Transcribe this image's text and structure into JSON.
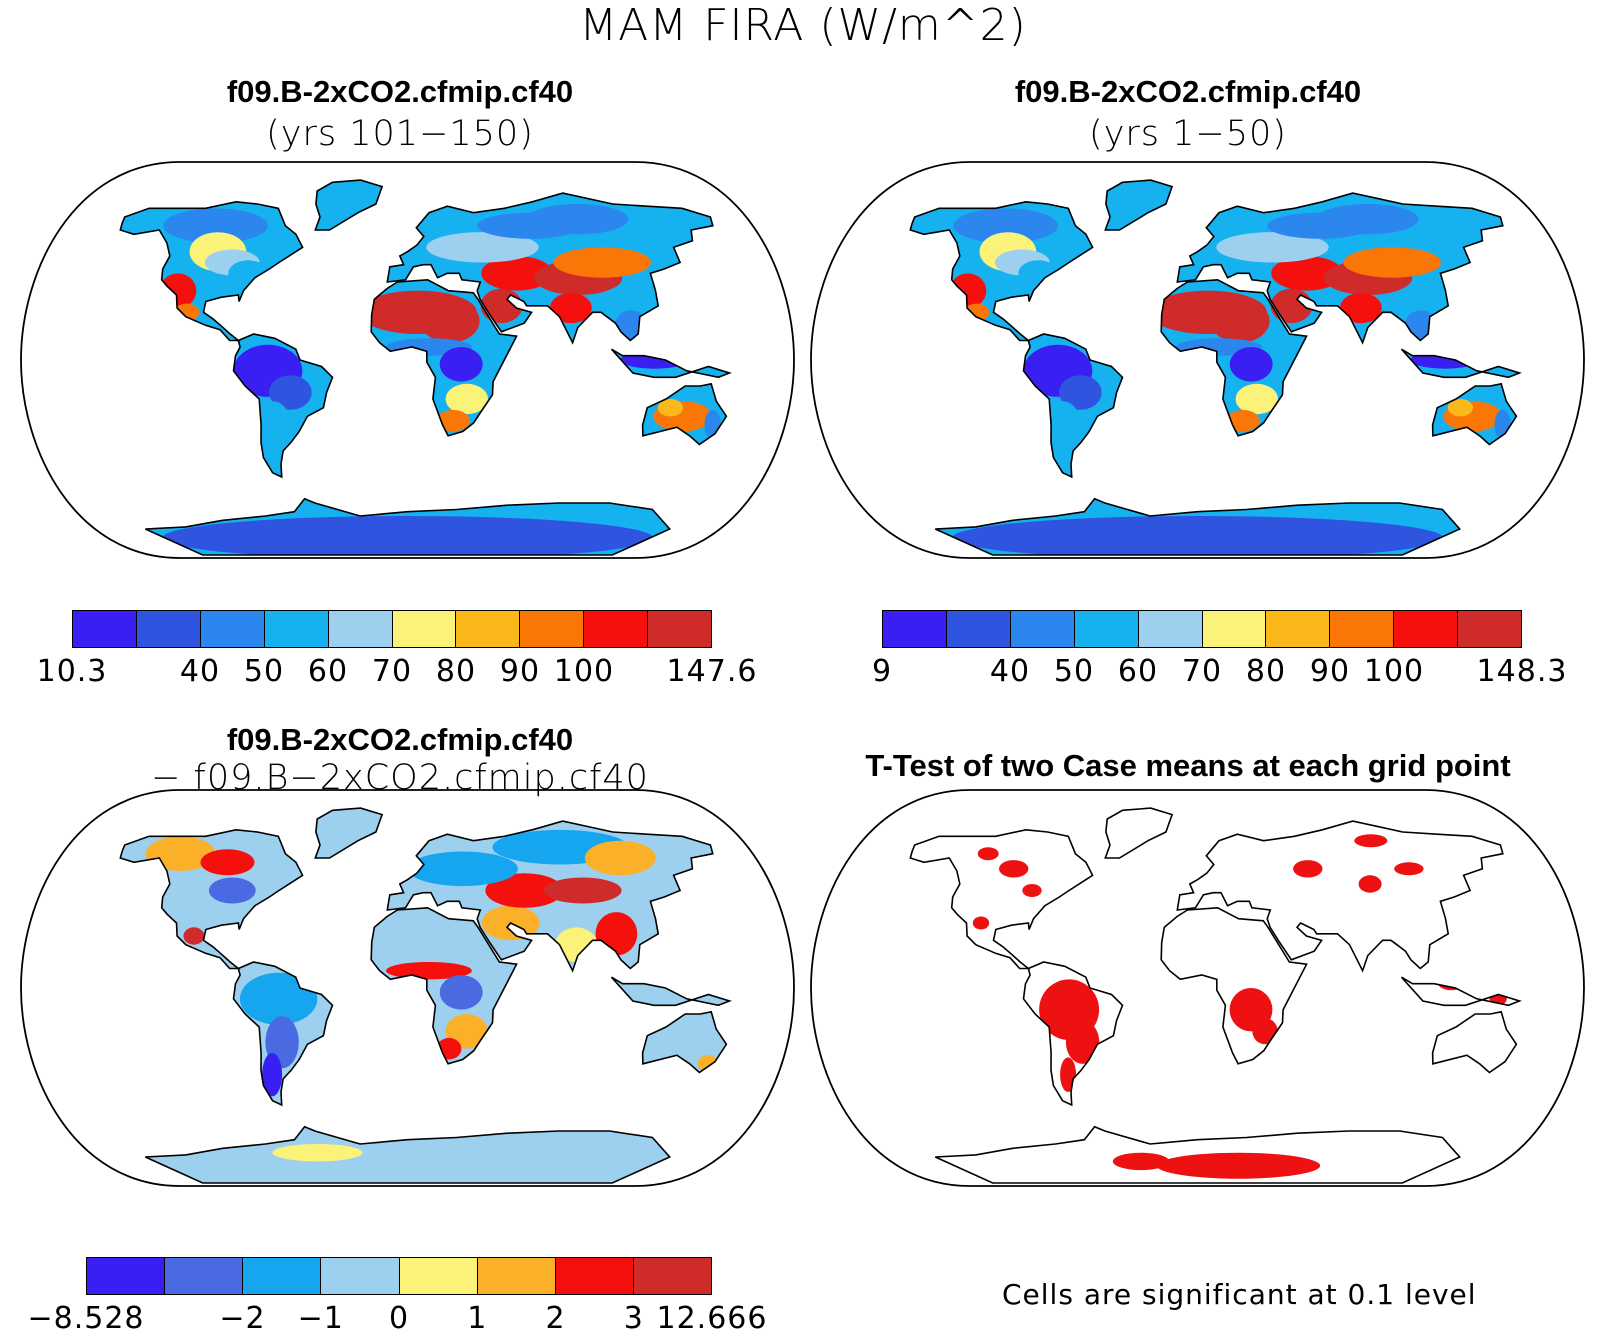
{
  "figure": {
    "title": "MAM FIRA (W/m^2)"
  },
  "panels": {
    "top_left": {
      "title_line1": "f09.B-2xCO2.cfmip.cf40",
      "title_line2": "(yrs 101−150)",
      "colorbar": {
        "colors": [
          "#3a1ff2",
          "#2f55e0",
          "#2b86ee",
          "#16b2ef",
          "#9dd0ee",
          "#fbf27a",
          "#fbb81b",
          "#fa7707",
          "#f5100e",
          "#d02b2b"
        ],
        "labels": [
          "10.3",
          "40",
          "50",
          "60",
          "70",
          "80",
          "90",
          "100",
          "147.6"
        ]
      }
    },
    "top_right": {
      "title_line1": "f09.B-2xCO2.cfmip.cf40",
      "title_line2": "(yrs 1−50)",
      "colorbar": {
        "colors": [
          "#3a1ff2",
          "#2f55e0",
          "#2b86ee",
          "#16b2ef",
          "#9dd0ee",
          "#fbf27a",
          "#fbb81b",
          "#fa7707",
          "#f5100e",
          "#d02b2b"
        ],
        "labels": [
          "9",
          "40",
          "50",
          "60",
          "70",
          "80",
          "90",
          "100",
          "148.3"
        ]
      }
    },
    "bottom_left": {
      "title_line1": "f09.B-2xCO2.cfmip.cf40",
      "title_line2": "− f09.B−2xCO2.cfmip.cf40",
      "colorbar": {
        "colors": [
          "#3a1ff2",
          "#4a6ae2",
          "#16a5ef",
          "#9dd0ee",
          "#fbf27a",
          "#fbb02a",
          "#f5100e",
          "#d02b2b"
        ],
        "labels": [
          "−8.528",
          "−2",
          "−1",
          "0",
          "1",
          "2",
          "3",
          "12.666"
        ]
      }
    },
    "bottom_right": {
      "title": "T-Test of two Case means at each grid point",
      "note": "Cells are significant at 0.1 level",
      "significance_color": "#ee1111"
    }
  }
}
